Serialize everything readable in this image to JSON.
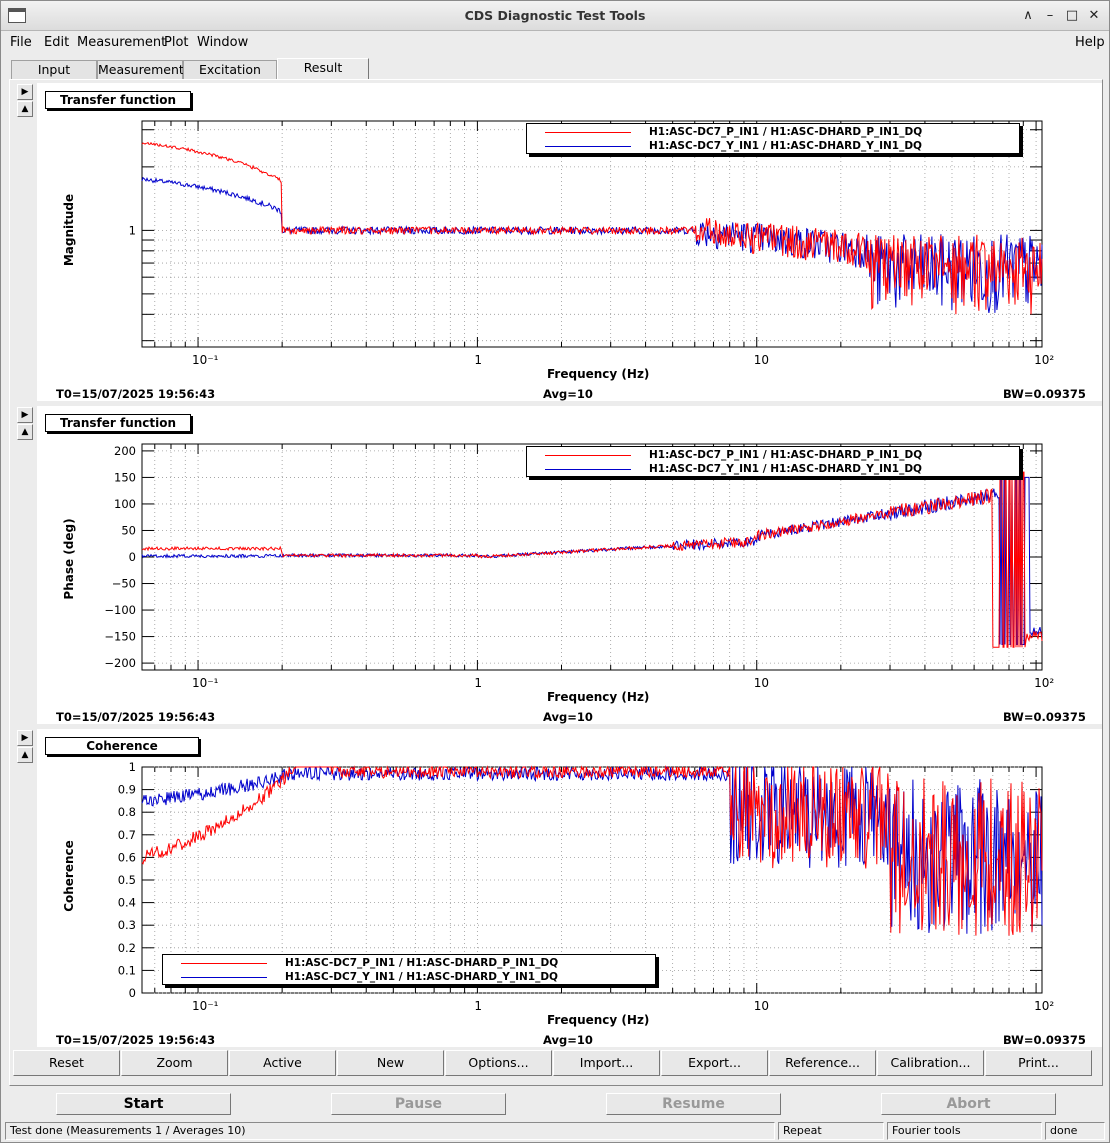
{
  "window": {
    "title": "CDS Diagnostic Test Tools"
  },
  "menu": {
    "file": "File",
    "edit": "Edit",
    "measurement": "Measurement",
    "plot": "Plot",
    "window": "Window",
    "help": "Help"
  },
  "tabs": [
    "Input",
    "Measurement",
    "Excitation",
    "Result"
  ],
  "active_tab": "Result",
  "plots": [
    {
      "title": "Transfer function",
      "ylabel": "Magnitude",
      "xlabel": "Frequency (Hz)",
      "t0": "T0=15/07/2025 19:56:43",
      "avg": "Avg=10",
      "bw": "BW=0.09375",
      "legend": [
        "H1:ASC-DC7_P_IN1 / H1:ASC-DHARD_P_IN1_DQ",
        "H1:ASC-DC7_Y_IN1 / H1:ASC-DHARD_Y_IN1_DQ"
      ],
      "yticks": [
        "1"
      ]
    },
    {
      "title": "Transfer function",
      "ylabel": "Phase (deg)",
      "xlabel": "Frequency (Hz)",
      "t0": "T0=15/07/2025 19:56:43",
      "avg": "Avg=10",
      "bw": "BW=0.09375",
      "legend": [
        "H1:ASC-DC7_P_IN1 / H1:ASC-DHARD_P_IN1_DQ",
        "H1:ASC-DC7_Y_IN1 / H1:ASC-DHARD_Y_IN1_DQ"
      ],
      "yticks": [
        "200",
        "150",
        "100",
        "50",
        "0",
        "−50",
        "−100",
        "−150",
        "−200"
      ]
    },
    {
      "title": "Coherence",
      "ylabel": "Coherence",
      "xlabel": "Frequency (Hz)",
      "t0": "T0=15/07/2025 19:56:43",
      "avg": "Avg=10",
      "bw": "BW=0.09375",
      "legend": [
        "H1:ASC-DC7_P_IN1 / H1:ASC-DHARD_P_IN1_DQ",
        "H1:ASC-DC7_Y_IN1 / H1:ASC-DHARD_Y_IN1_DQ"
      ],
      "yticks": [
        "1",
        "0.9",
        "0.8",
        "0.7",
        "0.6",
        "0.5",
        "0.4",
        "0.3",
        "0.2",
        "0.1",
        "0"
      ]
    }
  ],
  "xticks": [
    "10⁻¹",
    "1",
    "10",
    "10²"
  ],
  "series_colors": {
    "p": "#ff0000",
    "y": "#0000cc"
  },
  "toolbar": [
    "Reset",
    "Zoom",
    "Active",
    "New",
    "Options...",
    "Import...",
    "Export...",
    "Reference...",
    "Calibration...",
    "Print..."
  ],
  "controls": {
    "start": "Start",
    "pause": "Pause",
    "resume": "Resume",
    "abort": "Abort"
  },
  "status": {
    "message": "Test done (Measurements 1 / Averages 10)",
    "repeat": "Repeat",
    "tools": "Fourier tools",
    "state": "done"
  }
}
